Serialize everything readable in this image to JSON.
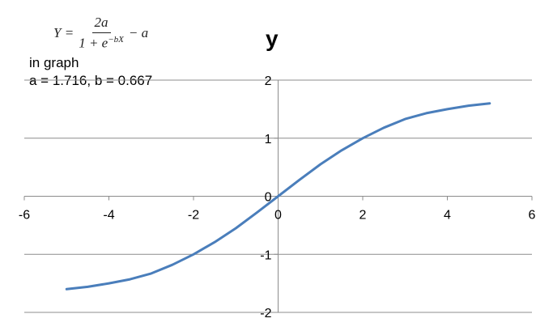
{
  "formula": {
    "lhs": "Y =",
    "numerator": "2a",
    "denominator_base": "1 + e",
    "denominator_exp": "−bX",
    "tail": "− a"
  },
  "notes": {
    "line1": "in graph",
    "line2": "a = 1.716, b = 0.667"
  },
  "chart_data": {
    "type": "line",
    "title": "y",
    "xlabel": "",
    "ylabel": "",
    "xlim": [
      -6,
      6
    ],
    "ylim": [
      -2,
      2
    ],
    "x_ticks": [
      -6,
      -4,
      -2,
      0,
      2,
      4,
      6
    ],
    "y_ticks": [
      -2,
      -1,
      0,
      1,
      2
    ],
    "grid": "horizontal",
    "legend": "none",
    "line_color": "#4a7ebb",
    "params": {
      "a": 1.716,
      "b": 0.667
    },
    "series": [
      {
        "x": [
          -5,
          -4.5,
          -4,
          -3.5,
          -3,
          -2.5,
          -2,
          -1.5,
          -1,
          -0.5,
          0,
          0.5,
          1,
          1.5,
          2,
          2.5,
          3,
          3.5,
          4,
          4.5,
          5
        ],
        "values": [
          -1.6,
          -1.56,
          -1.5,
          -1.43,
          -1.33,
          -1.18,
          -1.0,
          -0.79,
          -0.55,
          -0.28,
          0,
          0.28,
          0.55,
          0.79,
          1.0,
          1.18,
          1.33,
          1.43,
          1.5,
          1.56,
          1.6
        ]
      }
    ]
  }
}
